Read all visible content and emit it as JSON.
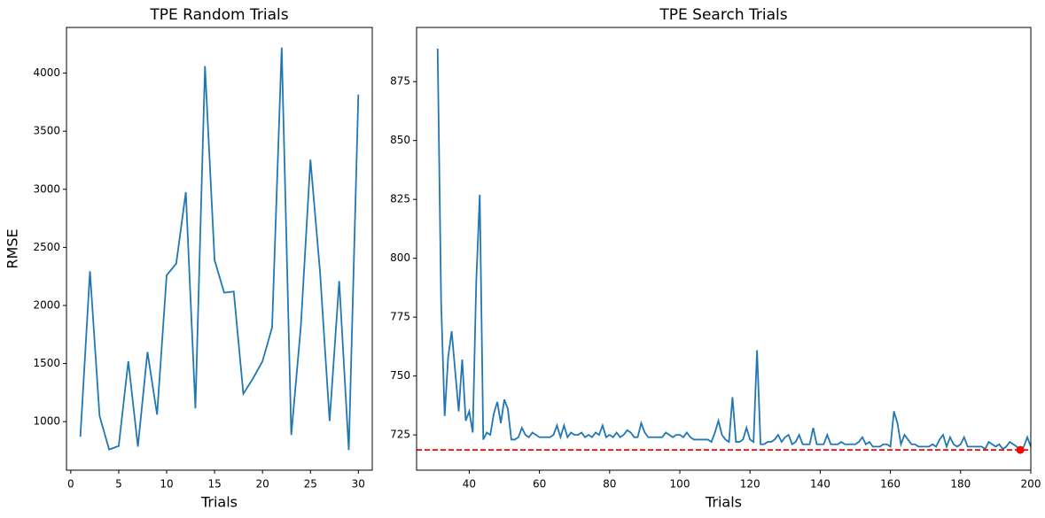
{
  "chart_data": [
    {
      "type": "line",
      "title": "TPE Random Trials",
      "xlabel": "Trials",
      "ylabel": "RMSE",
      "x": [
        1,
        2,
        3,
        4,
        5,
        6,
        7,
        8,
        9,
        10,
        11,
        12,
        13,
        14,
        15,
        16,
        17,
        18,
        19,
        20,
        21,
        22,
        23,
        24,
        25,
        26,
        27,
        28,
        29,
        30
      ],
      "series": [
        {
          "color": "#1f77b4",
          "values": [
            870,
            2295,
            1050,
            760,
            790,
            1520,
            785,
            1600,
            1060,
            2260,
            2360,
            2975,
            1115,
            4060,
            2390,
            2110,
            2120,
            1240,
            1370,
            1520,
            1810,
            4220,
            885,
            1820,
            3255,
            2290,
            1005,
            2210,
            755,
            3815
          ]
        }
      ],
      "xlim": [
        -0.45,
        31.45
      ],
      "xticks": [
        0,
        5,
        10,
        15,
        20,
        25,
        30
      ],
      "ylim": [
        582,
        4393
      ],
      "yticks": [
        1000,
        1500,
        2000,
        2500,
        3000,
        3500,
        4000
      ]
    },
    {
      "type": "line",
      "title": "TPE Search Trials",
      "xlabel": "Trials",
      "x": [
        31,
        32,
        33,
        34,
        35,
        36,
        37,
        38,
        39,
        40,
        41,
        42,
        43,
        44,
        45,
        46,
        47,
        48,
        49,
        50,
        51,
        52,
        53,
        54,
        55,
        56,
        57,
        58,
        59,
        60,
        61,
        62,
        63,
        64,
        65,
        66,
        67,
        68,
        69,
        70,
        71,
        72,
        73,
        74,
        75,
        76,
        77,
        78,
        79,
        80,
        81,
        82,
        83,
        84,
        85,
        86,
        87,
        88,
        89,
        90,
        91,
        92,
        93,
        94,
        95,
        96,
        97,
        98,
        99,
        100,
        101,
        102,
        103,
        104,
        105,
        106,
        107,
        108,
        109,
        110,
        111,
        112,
        113,
        114,
        115,
        116,
        117,
        118,
        119,
        120,
        121,
        122,
        123,
        124,
        125,
        126,
        127,
        128,
        129,
        130,
        131,
        132,
        133,
        134,
        135,
        136,
        137,
        138,
        139,
        140,
        141,
        142,
        143,
        144,
        145,
        146,
        147,
        148,
        149,
        150,
        151,
        152,
        153,
        154,
        155,
        156,
        157,
        158,
        159,
        160,
        161,
        162,
        163,
        164,
        165,
        166,
        167,
        168,
        169,
        170,
        171,
        172,
        173,
        174,
        175,
        176,
        177,
        178,
        179,
        180,
        181,
        182,
        183,
        184,
        185,
        186,
        187,
        188,
        189,
        190,
        191,
        192,
        193,
        194,
        195,
        196,
        197,
        198,
        199,
        200
      ],
      "series": [
        {
          "color": "#1f77b4",
          "values": [
            889,
            781,
            733,
            758,
            769,
            752,
            735,
            757,
            731,
            735,
            726,
            790,
            827,
            723,
            726,
            725,
            734,
            739,
            730,
            740,
            736,
            723,
            723,
            724,
            728,
            725,
            724,
            726,
            725,
            724,
            724,
            724,
            724,
            725,
            729,
            724,
            729,
            724,
            726,
            725,
            725,
            726,
            724,
            725,
            724,
            726,
            725,
            729,
            724,
            725,
            724,
            726,
            724,
            725,
            727,
            726,
            724,
            724,
            730,
            726,
            724,
            724,
            724,
            724,
            724,
            726,
            725,
            724,
            725,
            725,
            724,
            726,
            724,
            723,
            723,
            723,
            723,
            723,
            722,
            726,
            731,
            725,
            723,
            722,
            741,
            722,
            722,
            723,
            728,
            723,
            722,
            761,
            721,
            721,
            722,
            722,
            723,
            725,
            722,
            724,
            725,
            721,
            722,
            725,
            721,
            721,
            721,
            728,
            721,
            721,
            721,
            725,
            721,
            721,
            721,
            722,
            721,
            721,
            721,
            721,
            722,
            724,
            721,
            722,
            720,
            720,
            720,
            721,
            721,
            720,
            735,
            730,
            721,
            725,
            723,
            721,
            721,
            720,
            720,
            720,
            720,
            721,
            720,
            723,
            725,
            720,
            724,
            721,
            720,
            721,
            724,
            720,
            720,
            720,
            720,
            720,
            719,
            722,
            721,
            720,
            721,
            719,
            720,
            722,
            721,
            720,
            718.6,
            720,
            724,
            720
          ]
        }
      ],
      "reference_line": {
        "value": 718.6,
        "color": "#ff0000",
        "style": "dashed"
      },
      "marker": {
        "x": 197,
        "y": 718.6,
        "color": "#ff0000"
      },
      "xlim": [
        25,
        200
      ],
      "xticks": [
        40,
        60,
        80,
        100,
        120,
        140,
        160,
        180,
        200
      ],
      "ylim": [
        710,
        898
      ],
      "yticks": [
        725,
        750,
        775,
        800,
        825,
        850,
        875
      ]
    }
  ]
}
